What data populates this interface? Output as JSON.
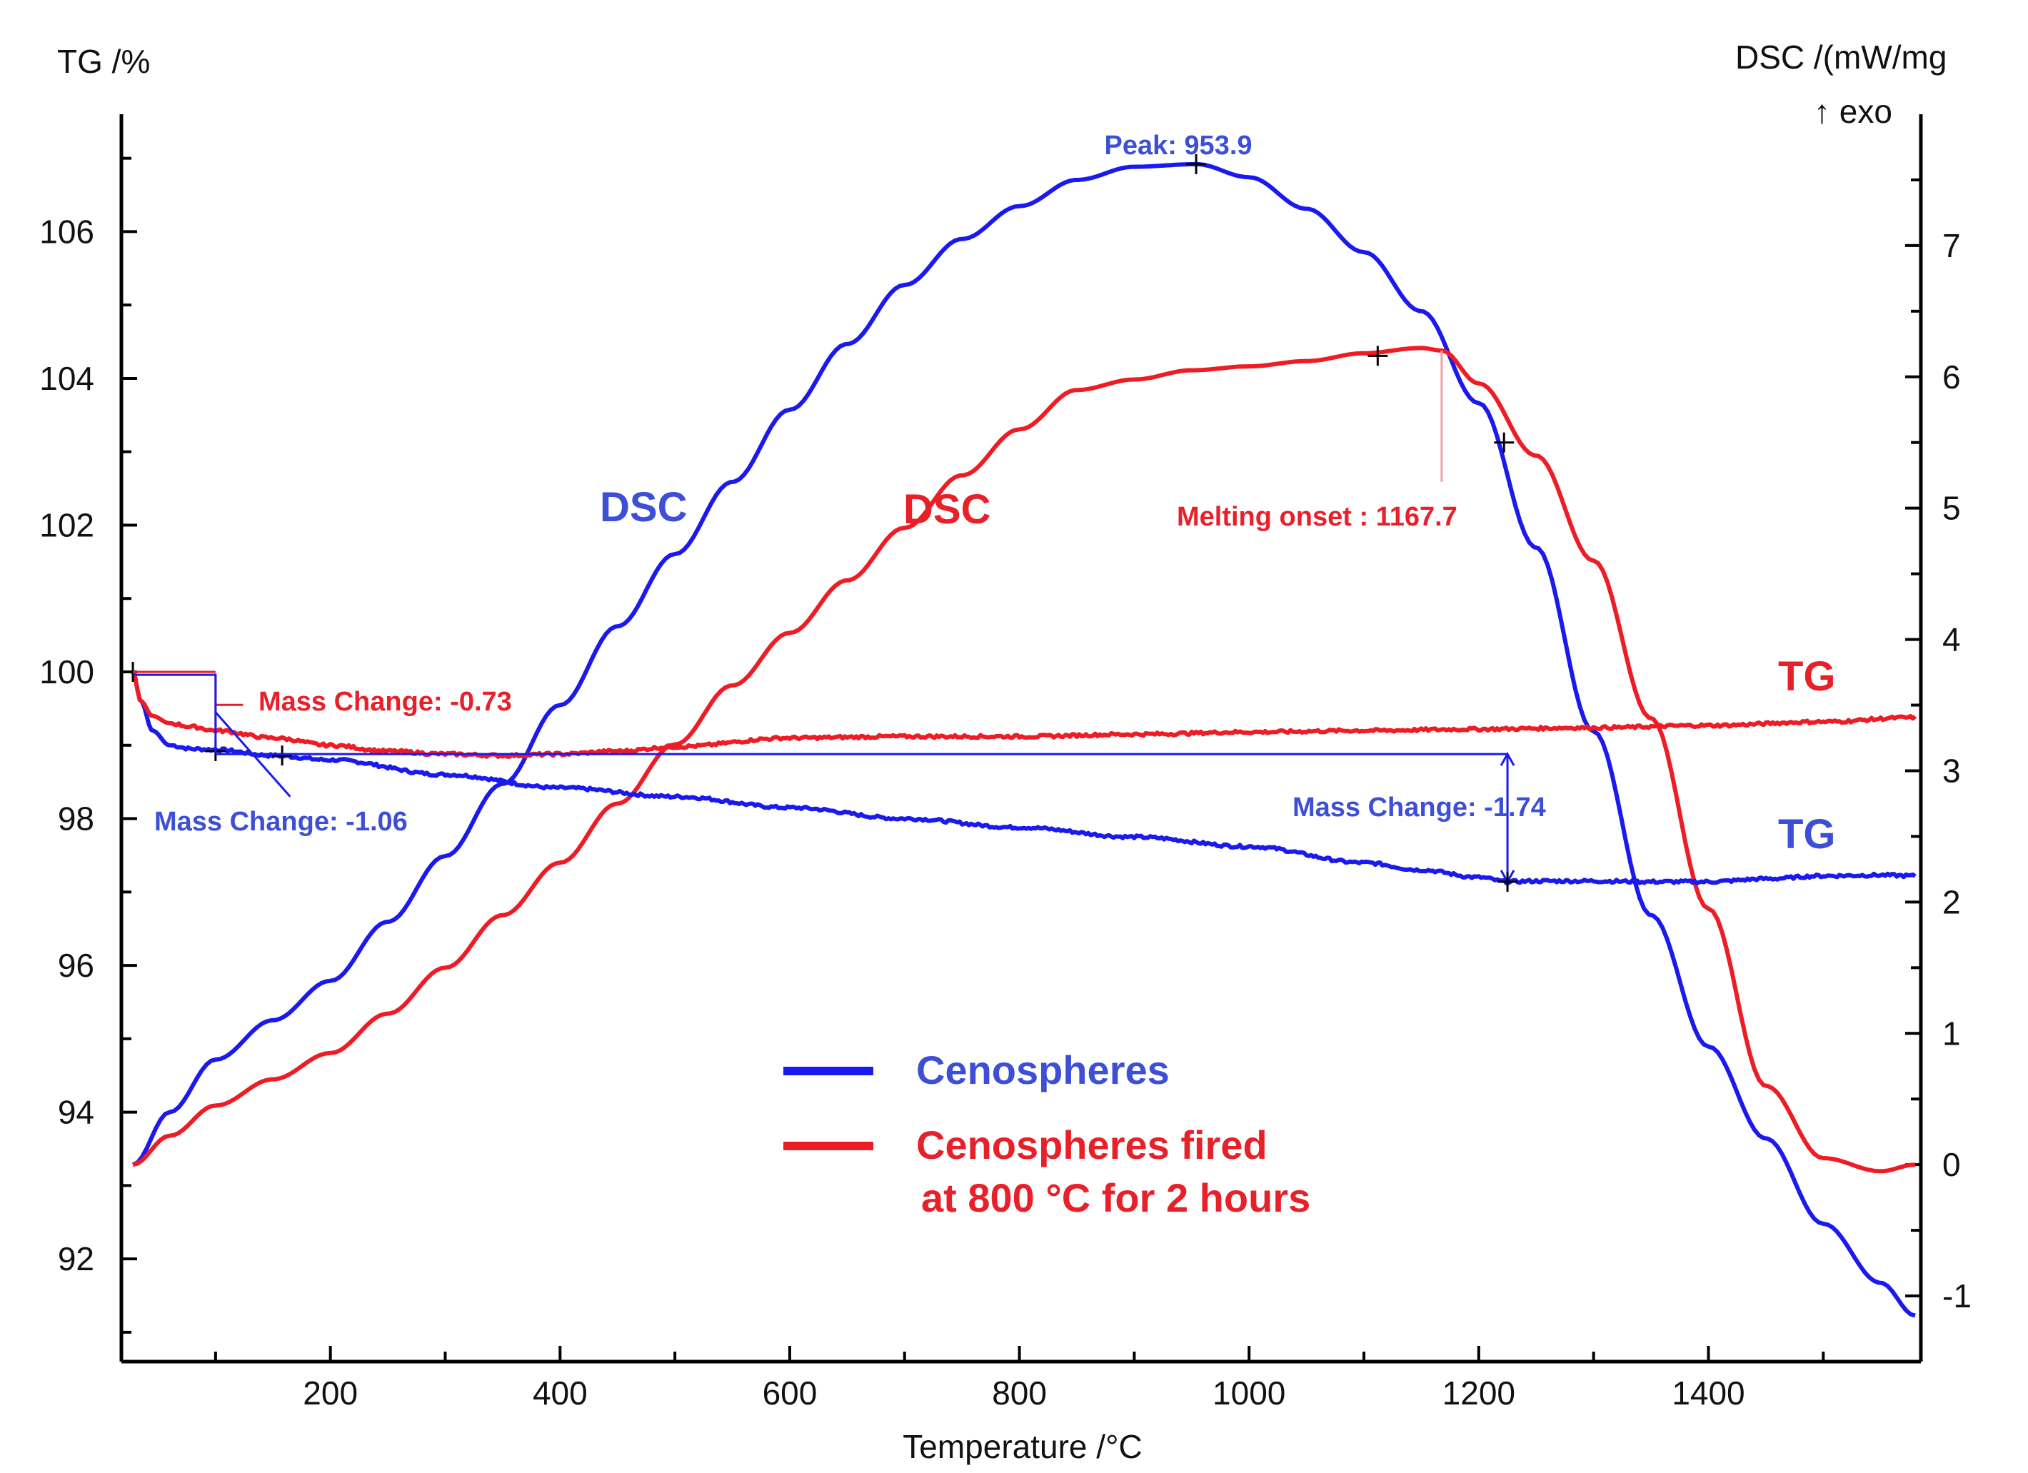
{
  "chart_data": {
    "type": "line",
    "xlabel": "Temperature /°C",
    "ylabel_left": "TG /%",
    "ylabel_right": "DSC /(mW/mg",
    "ylabel_right_sub": "↑ exo",
    "xlim": [
      18,
      1585
    ],
    "ylim_left": [
      90.6,
      107.6
    ],
    "ylim_right": [
      -1.5,
      8.0
    ],
    "x_ticks": [
      200,
      400,
      600,
      800,
      1000,
      1200,
      1400
    ],
    "x_tick_labels": [
      "200",
      "400",
      "600",
      "800",
      "1000",
      "1200",
      "1400"
    ],
    "y_left_ticks": [
      92,
      94,
      96,
      98,
      100,
      102,
      104,
      106
    ],
    "y_left_tick_labels": [
      "92",
      "94",
      "96",
      "98",
      "100",
      "102",
      "104",
      "106"
    ],
    "y_right_ticks": [
      -1,
      0,
      1,
      2,
      3,
      4,
      5,
      6,
      7
    ],
    "y_right_tick_labels": [
      "-1",
      "0",
      "1",
      "2",
      "3",
      "4",
      "5",
      "6",
      "7"
    ],
    "colors": {
      "blue": "#1a1aee",
      "red": "#ee1c24",
      "blue_text": "#3d4fd6",
      "red_text": "#e8202a"
    },
    "series": [
      {
        "name": "Cenospheres DSC",
        "axis": "right",
        "color": "#1a1aee",
        "x": [
          28,
          60,
          100,
          150,
          200,
          250,
          300,
          350,
          400,
          450,
          500,
          550,
          600,
          650,
          700,
          750,
          800,
          850,
          900,
          953.9,
          1000,
          1050,
          1100,
          1150,
          1200,
          1250,
          1300,
          1350,
          1400,
          1450,
          1500,
          1550,
          1580
        ],
        "y": [
          0.0,
          0.4,
          0.8,
          1.1,
          1.4,
          1.85,
          2.35,
          2.9,
          3.5,
          4.1,
          4.65,
          5.2,
          5.75,
          6.25,
          6.7,
          7.05,
          7.3,
          7.5,
          7.6,
          7.62,
          7.52,
          7.28,
          6.95,
          6.5,
          5.8,
          4.7,
          3.3,
          1.9,
          0.9,
          0.2,
          -0.45,
          -0.9,
          -1.15
        ]
      },
      {
        "name": "Cenospheres fired DSC",
        "axis": "right",
        "color": "#ee1c24",
        "x": [
          28,
          60,
          100,
          150,
          200,
          250,
          300,
          350,
          400,
          450,
          500,
          550,
          600,
          650,
          700,
          750,
          800,
          850,
          900,
          950,
          1000,
          1050,
          1100,
          1150,
          1167.7,
          1200,
          1250,
          1300,
          1350,
          1400,
          1450,
          1500,
          1550,
          1580
        ],
        "y": [
          0.0,
          0.22,
          0.45,
          0.65,
          0.85,
          1.15,
          1.5,
          1.9,
          2.3,
          2.75,
          3.2,
          3.65,
          4.05,
          4.45,
          4.85,
          5.25,
          5.6,
          5.9,
          5.98,
          6.05,
          6.08,
          6.12,
          6.18,
          6.22,
          6.2,
          5.95,
          5.4,
          4.6,
          3.4,
          1.95,
          0.6,
          0.05,
          -0.05,
          0.0
        ]
      },
      {
        "name": "Cenospheres TG",
        "axis": "left",
        "color": "#1a1aee",
        "x": [
          28,
          35,
          45,
          60,
          80,
          100,
          150,
          200,
          300,
          400,
          500,
          600,
          700,
          800,
          900,
          1000,
          1100,
          1150,
          1200,
          1225,
          1250,
          1300,
          1350,
          1400,
          1450,
          1500,
          1550,
          1580
        ],
        "y": [
          100.0,
          99.6,
          99.2,
          99.0,
          98.95,
          98.94,
          98.86,
          98.8,
          98.6,
          98.42,
          98.3,
          98.15,
          98.0,
          97.88,
          97.75,
          97.62,
          97.4,
          97.3,
          97.2,
          97.14,
          97.15,
          97.15,
          97.14,
          97.14,
          97.18,
          97.22,
          97.23,
          97.22
        ]
      },
      {
        "name": "Cenospheres fired TG",
        "axis": "left",
        "color": "#ee1c24",
        "x": [
          28,
          35,
          45,
          60,
          80,
          100,
          150,
          200,
          250,
          300,
          350,
          400,
          450,
          500,
          600,
          700,
          800,
          900,
          1000,
          1100,
          1200,
          1300,
          1400,
          1500,
          1580
        ],
        "y": [
          100.0,
          99.6,
          99.4,
          99.3,
          99.25,
          99.2,
          99.1,
          99.0,
          98.92,
          98.88,
          98.86,
          98.88,
          98.92,
          98.98,
          99.1,
          99.12,
          99.12,
          99.15,
          99.18,
          99.2,
          99.22,
          99.24,
          99.27,
          99.32,
          99.38
        ]
      }
    ],
    "annotations": {
      "peak": {
        "label": "Peak: 953.9",
        "x": 953.9,
        "dsc": 7.62
      },
      "melting": {
        "label": "Melting onset : 1167.7",
        "x": 1167.7,
        "dsc": 6.2
      },
      "dsc_blue_label": "DSC",
      "dsc_red_label": "DSC",
      "tg_red_label": "TG",
      "tg_blue_label": "TG",
      "mass_red": "Mass Change: -0.73",
      "mass_blue_1": "Mass Change: -1.06",
      "mass_blue_2": "Mass Change: -1.74"
    },
    "legend": [
      {
        "label": "Cenospheres",
        "color": "#1a1aee"
      },
      {
        "label": "Cenospheres fired",
        "label2": "at 800 °C for 2 hours",
        "color": "#ee1c24"
      }
    ]
  }
}
